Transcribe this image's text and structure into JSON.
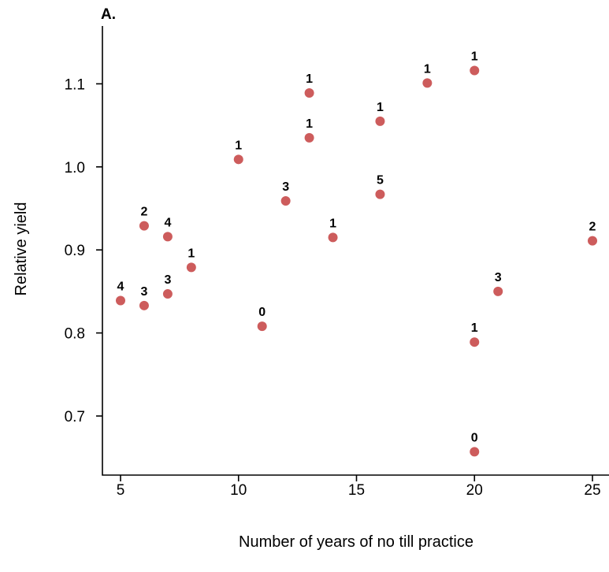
{
  "chart_data": {
    "type": "scatter",
    "panel_label": "A.",
    "xlabel": "Number of years of no till practice",
    "ylabel": "Relative yield",
    "xlim": [
      4.2,
      25.3
    ],
    "ylim": [
      0.63,
      1.17
    ],
    "x_ticks": [
      5,
      10,
      15,
      20,
      25
    ],
    "y_ticks": [
      0.7,
      0.8,
      0.9,
      1.0,
      1.1
    ],
    "y_tick_labels": [
      "0.7",
      "0.8",
      "0.9",
      "1.0",
      "1.1"
    ],
    "grid": false,
    "point_color": "#cd5c5c",
    "points": [
      {
        "x": 5,
        "y": 0.839,
        "label": "4"
      },
      {
        "x": 6,
        "y": 0.929,
        "label": "2"
      },
      {
        "x": 6,
        "y": 0.833,
        "label": "3"
      },
      {
        "x": 7,
        "y": 0.916,
        "label": "4"
      },
      {
        "x": 7,
        "y": 0.847,
        "label": "3"
      },
      {
        "x": 8,
        "y": 0.879,
        "label": "1"
      },
      {
        "x": 10,
        "y": 1.009,
        "label": "1"
      },
      {
        "x": 11,
        "y": 0.808,
        "label": "0"
      },
      {
        "x": 12,
        "y": 0.959,
        "label": "3"
      },
      {
        "x": 13,
        "y": 1.089,
        "label": "1"
      },
      {
        "x": 13,
        "y": 1.035,
        "label": "1"
      },
      {
        "x": 14,
        "y": 0.915,
        "label": "1"
      },
      {
        "x": 16,
        "y": 1.055,
        "label": "1"
      },
      {
        "x": 16,
        "y": 0.967,
        "label": "5"
      },
      {
        "x": 18,
        "y": 1.101,
        "label": "1"
      },
      {
        "x": 20,
        "y": 1.116,
        "label": "1"
      },
      {
        "x": 20,
        "y": 0.789,
        "label": "1"
      },
      {
        "x": 20,
        "y": 0.657,
        "label": "0"
      },
      {
        "x": 21,
        "y": 0.85,
        "label": "3"
      },
      {
        "x": 25,
        "y": 0.911,
        "label": "2"
      }
    ]
  }
}
